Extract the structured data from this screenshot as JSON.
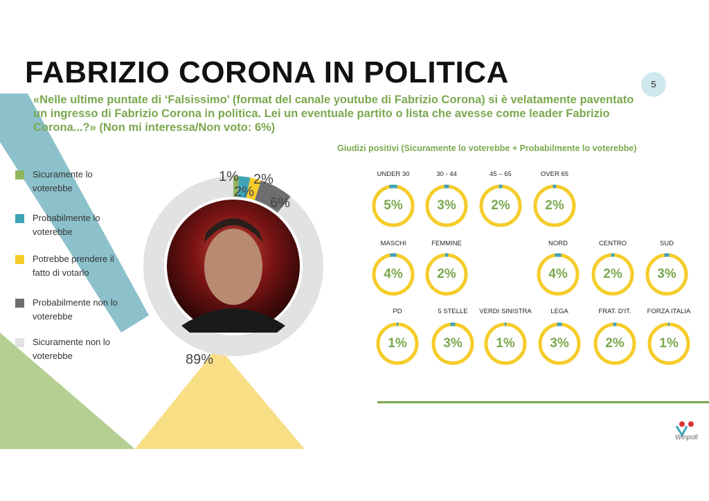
{
  "title": "FABRIZIO CORONA IN POLITICA",
  "page_number": "5",
  "question": "«Nelle ultime puntate di ‘Falsissimo’ (format del canale youtube di Fabrizio Corona) si è velatamente paventato un ingresso di Fabrizio Corona in politica. Lei un eventuale partito o lista che avesse come leader Fabrizio Corona...?» (Non mi interessa/Non voto:  6%)",
  "subheading": "Giudizi positivi (Sicuramente lo voterebbe + Probabilmente lo voterebbe)",
  "colors": {
    "green": "#8fb65c",
    "teal": "#3fa3b8",
    "yellow": "#f5cc2a",
    "gray": "#6e6e6e",
    "lightgray": "#e2e2e2",
    "accent": "#7aa84e"
  },
  "chart_data": [
    {
      "type": "pie",
      "variant": "donut",
      "categories": [
        "Sicuramente lo voterebbe",
        "Probabilmente lo voterebbe",
        "Potrebbe prendere il fatto di votarlo",
        "Probabilmente non lo voterebbe",
        "Sicuramente non lo voterebbe"
      ],
      "values": [
        1,
        2,
        2,
        6,
        89
      ],
      "labels": [
        "1%",
        "2%",
        "2%",
        "6%",
        "89%"
      ],
      "colors": [
        "#8fb65c",
        "#3fa3b8",
        "#f5cc2a",
        "#6e6e6e",
        "#e2e2e2"
      ],
      "legend": "left"
    },
    {
      "type": "gauge-grid",
      "items": [
        {
          "label": "UNDER 30",
          "value": 5,
          "text": "5%"
        },
        {
          "label": "30 - 44",
          "value": 3,
          "text": "3%"
        },
        {
          "label": "45 – 65",
          "value": 2,
          "text": "2%"
        },
        {
          "label": "OVER 65",
          "value": 2,
          "text": "2%"
        },
        {
          "label": "MASCHI",
          "value": 4,
          "text": "4%"
        },
        {
          "label": "FEMMINE",
          "value": 2,
          "text": "2%"
        },
        {
          "label": "NORD",
          "value": 4,
          "text": "4%"
        },
        {
          "label": "CENTRO",
          "value": 2,
          "text": "2%"
        },
        {
          "label": "SUD",
          "value": 3,
          "text": "3%"
        },
        {
          "label": "PD",
          "value": 1,
          "text": "1%"
        },
        {
          "label": "5 STELLE",
          "value": 3,
          "text": "3%"
        },
        {
          "label": "VERDI SINISTRA",
          "value": 1,
          "text": "1%"
        },
        {
          "label": "LEGA",
          "value": 3,
          "text": "3%"
        },
        {
          "label": "FRAT. D'IT.",
          "value": 2,
          "text": "2%"
        },
        {
          "label": "FORZA ITALIA",
          "value": 1,
          "text": "1%"
        }
      ]
    }
  ],
  "logo": "Winpoll"
}
